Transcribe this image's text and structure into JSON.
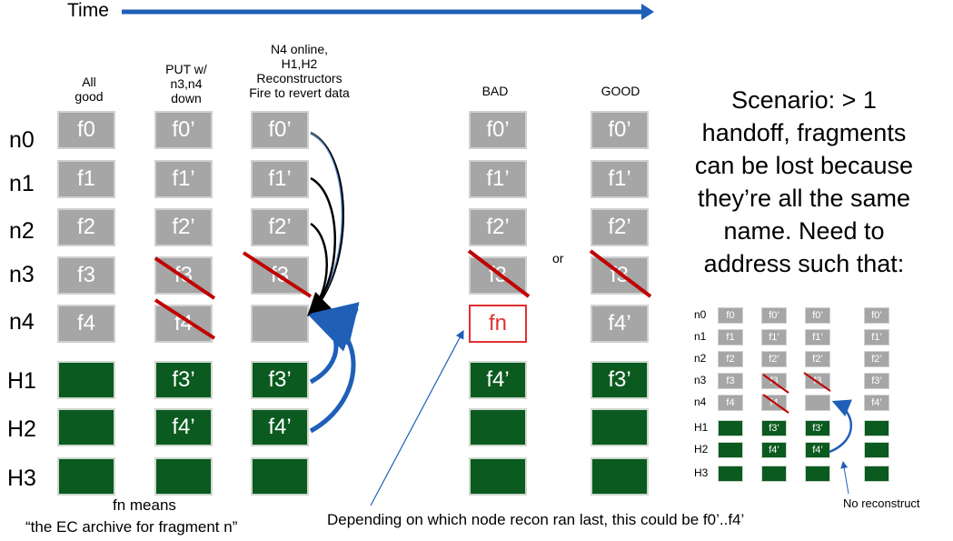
{
  "time_label": "Time",
  "rows": [
    "n0",
    "n1",
    "n2",
    "n3",
    "n4",
    "H1",
    "H2",
    "H3"
  ],
  "headers": {
    "col_all_good": [
      "All",
      "good"
    ],
    "col_put": [
      "PUT w/",
      "n3,n4",
      "down"
    ],
    "col_online": [
      "N4 online,",
      "H1,H2",
      "Reconstructors",
      "Fire to revert data"
    ],
    "bad": "BAD",
    "good": "GOOD"
  },
  "columns": {
    "all_good": [
      "f0",
      "f1",
      "f2",
      "f3",
      "f4",
      "",
      "",
      ""
    ],
    "put": [
      "f0’",
      "f1’",
      "f2’",
      "f3",
      "f4",
      "f3’",
      "f4’",
      ""
    ],
    "online": [
      "f0’",
      "f1’",
      "f2’",
      "f3",
      "",
      "f3’",
      "f4’",
      ""
    ],
    "bad": [
      "f0’",
      "f1’",
      "f2’",
      "f3",
      "fn",
      "f4’",
      "",
      ""
    ],
    "good": [
      "f0’",
      "f1’",
      "f2’",
      "f3",
      "f4’",
      "f3’",
      "",
      ""
    ]
  },
  "or_label": "or",
  "scenario_text": [
    "Scenario:  > 1",
    "handoff, fragments",
    "can be lost because",
    "they’re all the same",
    "name.  Need to",
    "address such that:"
  ],
  "mini": {
    "rows": [
      "n0",
      "n1",
      "n2",
      "n3",
      "n4",
      "H1",
      "H2",
      "H3"
    ],
    "c1": [
      "f0",
      "f1",
      "f2",
      "f3",
      "f4",
      "",
      "",
      ""
    ],
    "c2": [
      "f0’",
      "f1’",
      "f2’",
      "f3",
      "f4",
      "f3’",
      "f4’",
      ""
    ],
    "c3": [
      "f0’",
      "f1’",
      "f2’",
      "f3",
      "",
      "f3’",
      "f4’",
      ""
    ],
    "c4": [
      "f0’",
      "f1’",
      "f2’",
      "f3’",
      "f4’",
      "",
      "",
      ""
    ]
  },
  "no_reconstruct": "No reconstruct",
  "fn_note_1": "fn means",
  "fn_note_2": "“the EC archive for fragment n”",
  "depending_note": "Depending  on which node recon ran last, this could be f0’..f4’",
  "colors": {
    "gray": "#a6a6a6",
    "green": "#0b5a1f",
    "blue": "#1f5fb8",
    "red": "#c00000"
  }
}
